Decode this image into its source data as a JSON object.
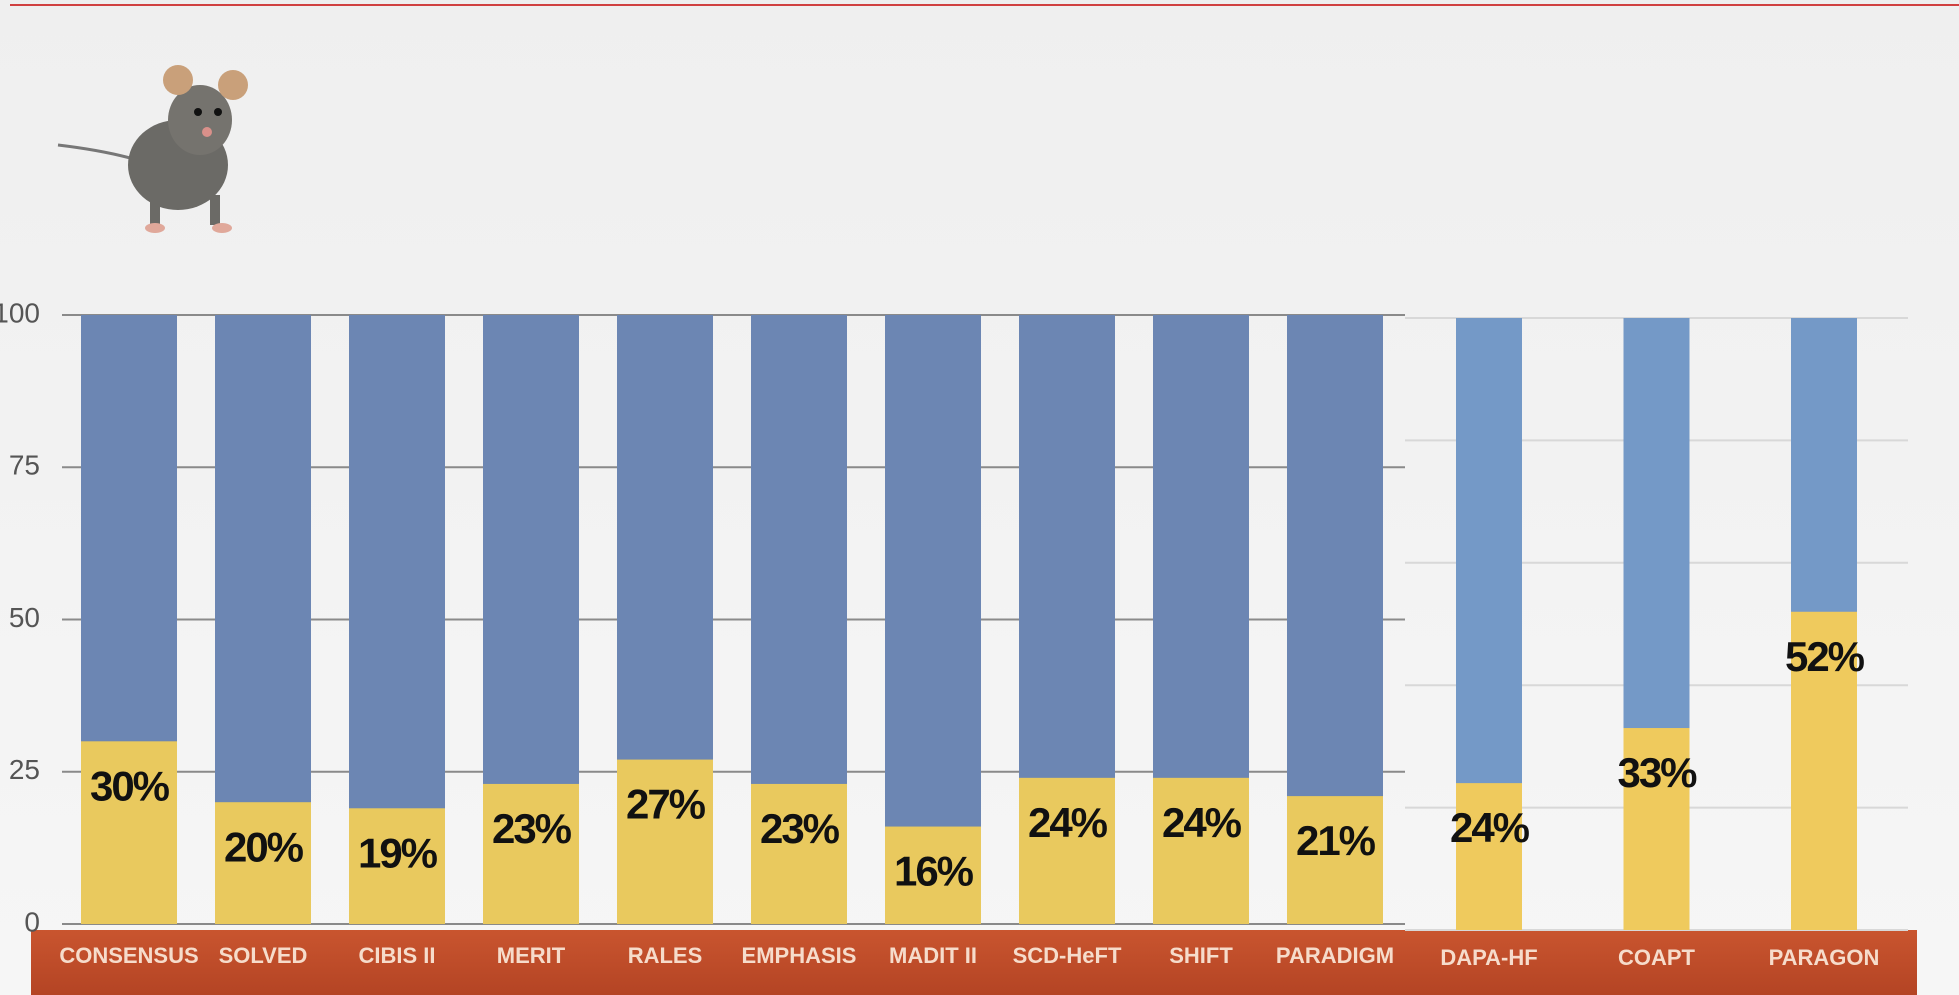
{
  "chart_data": [
    {
      "type": "bar",
      "categories": [
        "CONSENSUS",
        "SOLVED",
        "CIBIS II",
        "MERIT",
        "RALES",
        "EMPHASIS",
        "MADIT II",
        "SCD-HeFT",
        "SHIFT",
        "PARADIGM"
      ],
      "values": [
        30,
        20,
        19,
        23,
        27,
        23,
        16,
        24,
        24,
        21
      ],
      "value_labels": [
        "30%",
        "20%",
        "19%",
        "23%",
        "27%",
        "23%",
        "16%",
        "24%",
        "24%",
        "21%"
      ],
      "color": "#e9c95e",
      "track_color": "#6c86b3",
      "ylim": [
        0,
        100
      ],
      "yticks": [
        0,
        25,
        50,
        75,
        100
      ],
      "grid": true,
      "tick_labels": true
    },
    {
      "type": "bar",
      "categories": [
        "DAPA-HF",
        "COAPT",
        "PARAGON"
      ],
      "values": [
        24,
        33,
        52
      ],
      "value_labels": [
        "24%",
        "33%",
        "52%"
      ],
      "color": "#efca5d",
      "track_color": "#7499c7",
      "ylim": [
        0,
        100
      ],
      "yticks": [
        0,
        20,
        40,
        60,
        80,
        100
      ],
      "grid": true,
      "tick_labels": false
    }
  ]
}
